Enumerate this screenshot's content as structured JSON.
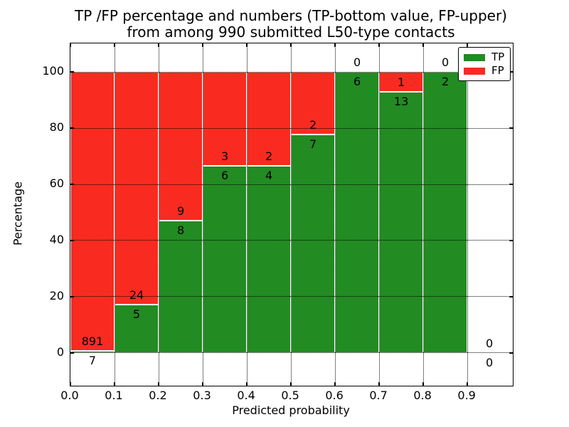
{
  "figure": {
    "title_line1": "TP /FP percentage and numbers (TP-bottom value, FP-upper)",
    "title_line2": "from among 990 submitted L50-type contacts",
    "x_axis_label": "Predicted probability",
    "y_axis_label": "Percentage"
  },
  "legend": {
    "position": "upper right",
    "items": [
      {
        "label": "TP",
        "color": "#228b22"
      },
      {
        "label": "FP",
        "color": "#f92b20"
      }
    ]
  },
  "chart_data": {
    "type": "bar",
    "stacked": true,
    "normalized": "each bin scaled to 100%",
    "title": "TP /FP percentage and numbers (TP-bottom value, FP-upper) from among 990 submitted L50-type contacts",
    "xlabel": "Predicted probability",
    "ylabel": "Percentage",
    "total_submitted_contacts": 990,
    "grid": "dotted, drawn above bars",
    "legend_position": "upper right",
    "xlim": [
      0.0,
      1.003
    ],
    "ylim": [
      -11.7,
      110.2
    ],
    "x_tick_labels": [
      "0.0",
      "0.1",
      "0.2",
      "0.3",
      "0.4",
      "0.5",
      "0.6",
      "0.7",
      "0.8",
      "0.9"
    ],
    "y_tick_values": [
      0,
      20,
      40,
      60,
      80,
      100
    ],
    "colors": {
      "tp": "#228b22",
      "fp": "#f92b20",
      "bar_edge": "#ffffff"
    },
    "bins": [
      {
        "range": [
          0.0,
          0.1
        ],
        "tp": 7,
        "fp": 891,
        "tp_percent": 0.78
      },
      {
        "range": [
          0.1,
          0.2
        ],
        "tp": 5,
        "fp": 24,
        "tp_percent": 17.24
      },
      {
        "range": [
          0.2,
          0.3
        ],
        "tp": 8,
        "fp": 9,
        "tp_percent": 47.06
      },
      {
        "range": [
          0.3,
          0.4
        ],
        "tp": 6,
        "fp": 3,
        "tp_percent": 66.67
      },
      {
        "range": [
          0.4,
          0.5
        ],
        "tp": 4,
        "fp": 2,
        "tp_percent": 66.67
      },
      {
        "range": [
          0.5,
          0.6
        ],
        "tp": 7,
        "fp": 2,
        "tp_percent": 77.78
      },
      {
        "range": [
          0.6,
          0.7
        ],
        "tp": 6,
        "fp": 0,
        "tp_percent": 100
      },
      {
        "range": [
          0.7,
          0.8
        ],
        "tp": 13,
        "fp": 1,
        "tp_percent": 92.86
      },
      {
        "range": [
          0.8,
          0.9
        ],
        "tp": 2,
        "fp": 0,
        "tp_percent": 100
      },
      {
        "range": [
          0.9,
          1.0
        ],
        "tp": 0,
        "fp": 0,
        "tp_percent": 0
      }
    ]
  }
}
